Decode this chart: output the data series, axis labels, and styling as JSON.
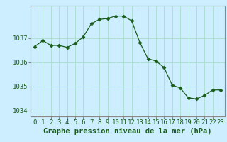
{
  "x": [
    0,
    1,
    2,
    3,
    4,
    5,
    6,
    7,
    8,
    9,
    10,
    11,
    12,
    13,
    14,
    15,
    16,
    17,
    18,
    19,
    20,
    21,
    22,
    23
  ],
  "y": [
    1036.65,
    1036.9,
    1036.7,
    1036.7,
    1036.62,
    1036.78,
    1037.05,
    1037.6,
    1037.78,
    1037.82,
    1037.92,
    1037.92,
    1037.72,
    1036.82,
    1036.15,
    1036.05,
    1035.78,
    1035.05,
    1034.93,
    1034.52,
    1034.48,
    1034.62,
    1034.85,
    1034.85
  ],
  "line_color": "#1a5c1a",
  "marker": "D",
  "marker_size": 2.5,
  "bg_color": "#cceeff",
  "grid_color": "#aaddcc",
  "xlabel": "Graphe pression niveau de la mer (hPa)",
  "xlabel_color": "#1a5c1a",
  "xlabel_fontsize": 7.5,
  "tick_fontsize": 6.5,
  "tick_color": "#1a5c1a",
  "ylim": [
    1033.75,
    1038.35
  ],
  "yticks": [
    1034,
    1035,
    1036,
    1037
  ],
  "xticks": [
    0,
    1,
    2,
    3,
    4,
    5,
    6,
    7,
    8,
    9,
    10,
    11,
    12,
    13,
    14,
    15,
    16,
    17,
    18,
    19,
    20,
    21,
    22,
    23
  ],
  "xtick_labels": [
    "0",
    "1",
    "2",
    "3",
    "4",
    "5",
    "6",
    "7",
    "8",
    "9",
    "10",
    "11",
    "12",
    "13",
    "14",
    "15",
    "16",
    "17",
    "18",
    "19",
    "20",
    "21",
    "22",
    "23"
  ]
}
